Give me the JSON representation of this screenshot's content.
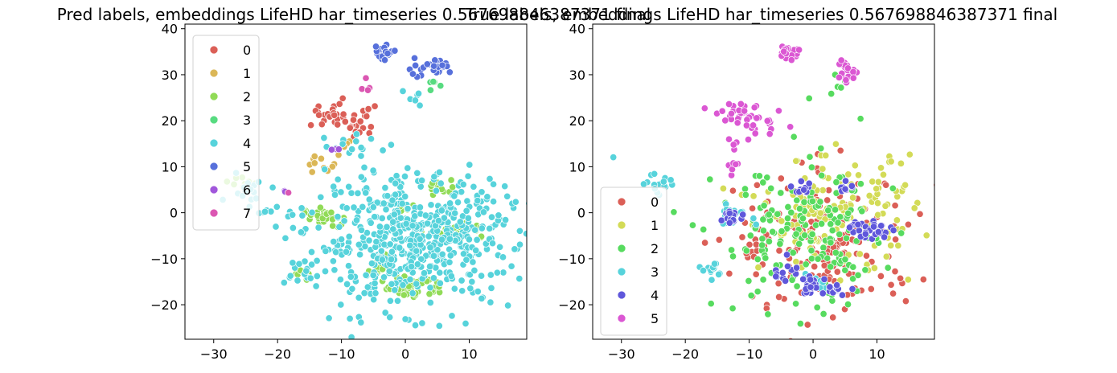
{
  "chart_data": [
    {
      "type": "scatter",
      "title": "Pred labels, embeddings LifeHD har_timeseries 0.567698846387371 final",
      "xlabel": "",
      "ylabel": "",
      "xlim": [
        -34.5,
        19
      ],
      "ylim": [
        -27.5,
        41
      ],
      "xticks": [
        -30,
        -20,
        -10,
        0,
        10
      ],
      "yticks": [
        -20,
        -10,
        0,
        10,
        20,
        30,
        40
      ],
      "grid": false,
      "legend_position": "upper-left",
      "series": [
        {
          "name": "0",
          "color": "#db5f57",
          "clusters": [
            {
              "center": [
                -12,
                21
              ],
              "spread": [
                2.2,
                1.3
              ],
              "count": 22
            },
            {
              "center": [
                -7.5,
                19
              ],
              "spread": [
                2.0,
                1.5
              ],
              "count": 20
            },
            {
              "center": [
                -6,
                22
              ],
              "spread": [
                0.6,
                0.6
              ],
              "count": 4
            }
          ]
        },
        {
          "name": "1",
          "color": "#dbb757",
          "clusters": [
            {
              "center": [
                -12.5,
                10.5
              ],
              "spread": [
                1.5,
                1.0
              ],
              "count": 12
            },
            {
              "center": [
                -9,
                14.5
              ],
              "spread": [
                0.6,
                0.6
              ],
              "count": 3
            }
          ]
        },
        {
          "name": "2",
          "color": "#91db57",
          "clusters": [
            {
              "center": [
                -13,
                -1
              ],
              "spread": [
                1.5,
                1.0
              ],
              "count": 30
            },
            {
              "center": [
                0,
                -16
              ],
              "spread": [
                1.4,
                1.2
              ],
              "count": 40
            },
            {
              "center": [
                9,
                -4
              ],
              "spread": [
                2.0,
                1.0
              ],
              "count": 30
            },
            {
              "center": [
                5.5,
                5.5
              ],
              "spread": [
                1.2,
                0.8
              ],
              "count": 12
            },
            {
              "center": [
                -4,
                -11
              ],
              "spread": [
                1.0,
                1.8
              ],
              "count": 10
            },
            {
              "center": [
                4.5,
                -16
              ],
              "spread": [
                0.8,
                1.0
              ],
              "count": 8
            },
            {
              "center": [
                -15.5,
                -13
              ],
              "spread": [
                1.0,
                0.8
              ],
              "count": 10
            },
            {
              "center": [
                -25.5,
                7
              ],
              "spread": [
                1.2,
                1.5
              ],
              "count": 8
            },
            {
              "center": [
                0,
                1
              ],
              "spread": [
                0.6,
                0.5
              ],
              "count": 6
            }
          ]
        },
        {
          "name": "3",
          "color": "#57db80",
          "clusters": [
            {
              "center": [
                4.5,
                28
              ],
              "spread": [
                0.5,
                1.5
              ],
              "count": 6
            }
          ]
        },
        {
          "name": "4",
          "color": "#57d3db",
          "clusters": [
            {
              "center": [
                1,
                -6
              ],
              "spread": [
                8.0,
                7.0
              ],
              "count": 580
            },
            {
              "center": [
                -25,
                6
              ],
              "spread": [
                1.5,
                1.8
              ],
              "count": 14
            },
            {
              "center": [
                -16,
                -12.5
              ],
              "spread": [
                2.0,
                1.5
              ],
              "count": 12
            },
            {
              "center": [
                -20,
                -1
              ],
              "spread": [
                3.0,
                2.0
              ],
              "count": 10
            },
            {
              "center": [
                -8,
                15
              ],
              "spread": [
                2.5,
                1.5
              ],
              "count": 10
            },
            {
              "center": [
                3,
                25
              ],
              "spread": [
                2.0,
                1.5
              ],
              "count": 6
            }
          ]
        },
        {
          "name": "5",
          "color": "#5770db",
          "clusters": [
            {
              "center": [
                -3.5,
                35
              ],
              "spread": [
                0.8,
                0.9
              ],
              "count": 20
            },
            {
              "center": [
                5,
                32
              ],
              "spread": [
                1.0,
                0.8
              ],
              "count": 20
            },
            {
              "center": [
                1.5,
                32
              ],
              "spread": [
                1.5,
                1.5
              ],
              "count": 8
            }
          ]
        },
        {
          "name": "6",
          "color": "#a157db",
          "clusters": [
            {
              "center": [
                -11,
                14
              ],
              "spread": [
                0.5,
                0.5
              ],
              "count": 3
            },
            {
              "center": [
                -19,
                4.5
              ],
              "spread": [
                0.6,
                0.4
              ],
              "count": 2
            }
          ]
        },
        {
          "name": "7",
          "color": "#db57b2",
          "clusters": [
            {
              "center": [
                -5.5,
                27
              ],
              "spread": [
                0.6,
                0.8
              ],
              "count": 4
            },
            {
              "center": [
                -18.5,
                4.5
              ],
              "spread": [
                0.3,
                0.3
              ],
              "count": 1
            }
          ]
        }
      ]
    },
    {
      "type": "scatter",
      "title": "True labels, embeddings LifeHD har_timeseries 0.567698846387371 final",
      "xlabel": "",
      "ylabel": "",
      "xlim": [
        -34.5,
        19
      ],
      "ylim": [
        -27.5,
        41
      ],
      "xticks": [
        -30,
        -20,
        -10,
        0,
        10
      ],
      "yticks": [
        -20,
        -10,
        0,
        10,
        20,
        30,
        40
      ],
      "grid": false,
      "legend_position": "lower-left",
      "series": [
        {
          "name": "0",
          "color": "#db5f57",
          "clusters": [
            {
              "center": [
                2,
                -7
              ],
              "spread": [
                7.0,
                7.5
              ],
              "count": 190
            }
          ]
        },
        {
          "name": "1",
          "color": "#d3db57",
          "clusters": [
            {
              "center": [
                4,
                0
              ],
              "spread": [
                6.0,
                6.0
              ],
              "count": 150
            }
          ]
        },
        {
          "name": "2",
          "color": "#57db5f",
          "clusters": [
            {
              "center": [
                -1,
                -6
              ],
              "spread": [
                7.0,
                8.0
              ],
              "count": 170
            },
            {
              "center": [
                1.5,
                27
              ],
              "spread": [
                2.0,
                2.0
              ],
              "count": 6
            }
          ]
        },
        {
          "name": "3",
          "color": "#57d3db",
          "clusters": [
            {
              "center": [
                -25,
                6.5
              ],
              "spread": [
                1.5,
                1.6
              ],
              "count": 16
            },
            {
              "center": [
                -12.5,
                -0.5
              ],
              "spread": [
                1.5,
                1.0
              ],
              "count": 20
            },
            {
              "center": [
                -15.5,
                -13
              ],
              "spread": [
                1.0,
                0.8
              ],
              "count": 12
            },
            {
              "center": [
                0,
                -15
              ],
              "spread": [
                1.0,
                1.0
              ],
              "count": 12
            },
            {
              "center": [
                -31,
                12
              ],
              "spread": [
                0.4,
                0.4
              ],
              "count": 1
            }
          ]
        },
        {
          "name": "4",
          "color": "#5f57db",
          "clusters": [
            {
              "center": [
                0,
                -16
              ],
              "spread": [
                1.2,
                1.0
              ],
              "count": 30
            },
            {
              "center": [
                9,
                -3.5
              ],
              "spread": [
                1.6,
                1.0
              ],
              "count": 30
            },
            {
              "center": [
                -13,
                -1
              ],
              "spread": [
                1.2,
                0.8
              ],
              "count": 18
            },
            {
              "center": [
                -1,
                5.5
              ],
              "spread": [
                0.8,
                0.8
              ],
              "count": 10
            },
            {
              "center": [
                5,
                5.5
              ],
              "spread": [
                0.8,
                0.8
              ],
              "count": 8
            },
            {
              "center": [
                -4.5,
                -13
              ],
              "spread": [
                1.0,
                1.5
              ],
              "count": 12
            },
            {
              "center": [
                4,
                -16
              ],
              "spread": [
                1.0,
                1.0
              ],
              "count": 10
            }
          ]
        },
        {
          "name": "5",
          "color": "#db57d3",
          "clusters": [
            {
              "center": [
                -3.5,
                35
              ],
              "spread": [
                0.8,
                0.9
              ],
              "count": 20
            },
            {
              "center": [
                5,
                31
              ],
              "spread": [
                1.0,
                1.5
              ],
              "count": 22
            },
            {
              "center": [
                -11.5,
                21.5
              ],
              "spread": [
                1.8,
                1.0
              ],
              "count": 22
            },
            {
              "center": [
                -8,
                19
              ],
              "spread": [
                1.8,
                1.3
              ],
              "count": 20
            },
            {
              "center": [
                -12.5,
                10.5
              ],
              "spread": [
                0.8,
                0.8
              ],
              "count": 6
            },
            {
              "center": [
                -12.5,
                14.5
              ],
              "spread": [
                0.6,
                0.6
              ],
              "count": 4
            }
          ]
        }
      ]
    }
  ]
}
